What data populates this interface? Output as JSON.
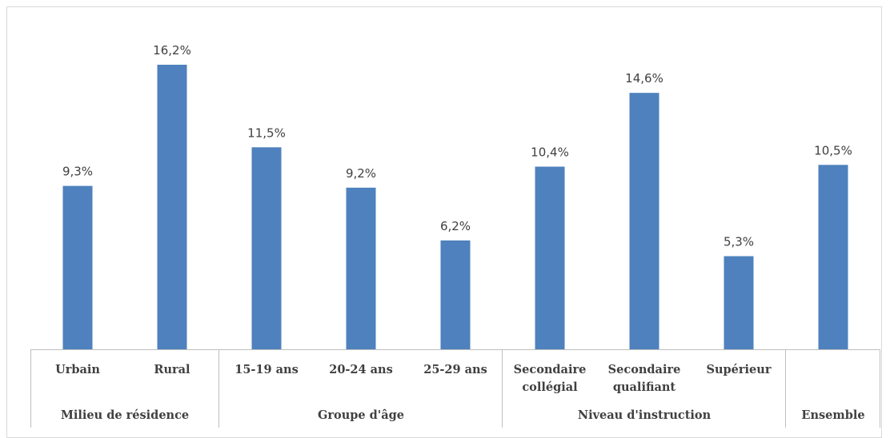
{
  "chart_data": {
    "type": "bar",
    "title": "",
    "xlabel": "",
    "ylabel": "",
    "ylim": [
      0,
      18
    ],
    "grid": false,
    "legend": "none",
    "bar_color": "#4e81bd",
    "categories": [
      {
        "label": "Urbain",
        "group": 0
      },
      {
        "label": "Rural",
        "group": 0
      },
      {
        "label": "15-19 ans",
        "group": 1
      },
      {
        "label": "20-24 ans",
        "group": 1
      },
      {
        "label": "25-29 ans",
        "group": 1
      },
      {
        "label": "Secondaire\ncollégial",
        "group": 2
      },
      {
        "label": "Secondaire\nqualifiant",
        "group": 2
      },
      {
        "label": "Supérieur",
        "group": 2
      },
      {
        "label": "",
        "group": 3
      }
    ],
    "values": [
      9.3,
      16.2,
      11.5,
      9.2,
      6.2,
      10.4,
      14.6,
      5.3,
      10.5
    ],
    "value_labels": [
      "9,3%",
      "16,2%",
      "11,5%",
      "9,2%",
      "6,2%",
      "10,4%",
      "14,6%",
      "5,3%",
      "10,5%"
    ],
    "groups": [
      {
        "label": "Milieu de résidence",
        "size": 2
      },
      {
        "label": "Groupe d'âge",
        "size": 3
      },
      {
        "label": "Niveau d'instruction",
        "size": 3
      },
      {
        "label": "Ensemble",
        "size": 1
      }
    ]
  }
}
